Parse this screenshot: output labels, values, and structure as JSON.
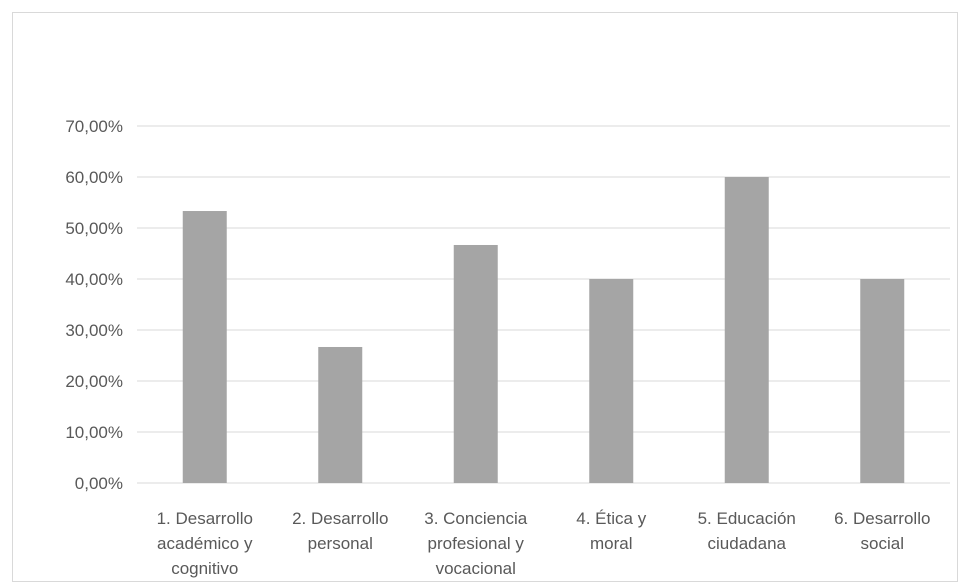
{
  "chart_data": {
    "type": "bar",
    "title": "",
    "xlabel": "",
    "ylabel": "",
    "categories": [
      [
        "1. Desarrollo",
        "académico y",
        "cognitivo"
      ],
      [
        "2. Desarrollo",
        "personal"
      ],
      [
        "3. Conciencia",
        "profesional y",
        "vocacional"
      ],
      [
        "4. Ética y",
        "moral"
      ],
      [
        "5. Educación",
        "ciudadana"
      ],
      [
        "6. Desarrollo",
        "social"
      ]
    ],
    "values": [
      0.5333,
      0.2667,
      0.4667,
      0.4,
      0.6,
      0.4
    ],
    "ylim": [
      0,
      0.7
    ],
    "yticks": [
      0,
      0.1,
      0.2,
      0.3,
      0.4,
      0.5,
      0.6,
      0.7
    ],
    "ytick_labels": [
      "0,00%",
      "10,00%",
      "20,00%",
      "30,00%",
      "40,00%",
      "50,00%",
      "60,00%",
      "70,00%"
    ],
    "grid": true,
    "legend": "none",
    "colors": {
      "bar": "#a5a5a5",
      "grid": "#d9d9d9",
      "text": "#595959"
    }
  }
}
